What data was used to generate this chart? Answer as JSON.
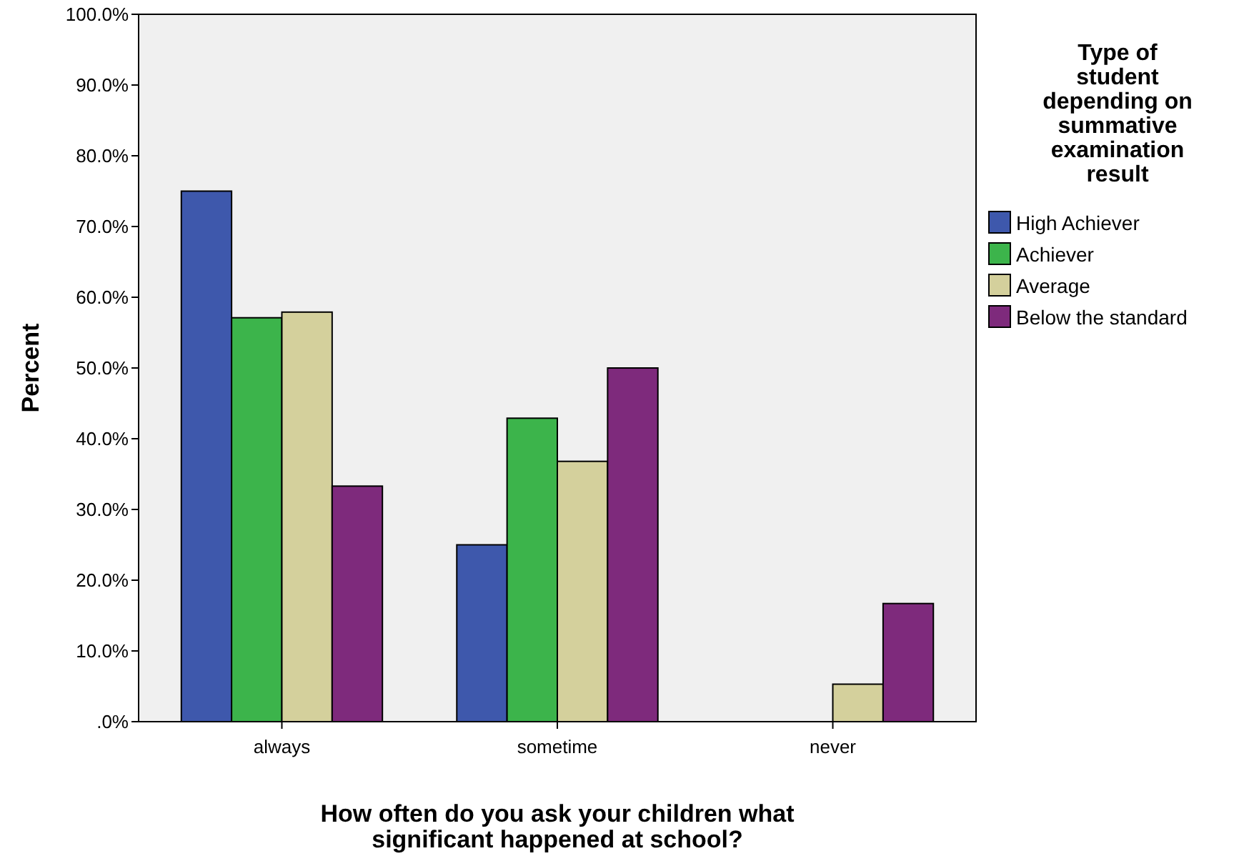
{
  "chart_data": {
    "type": "bar",
    "xlabel": "How often do you ask your children what significant happened at school?",
    "ylabel": "Percent",
    "legend_title": "Type of student depending on summative examination result",
    "categories": [
      "always",
      "sometime",
      "never"
    ],
    "series": [
      {
        "name": "High Achiever",
        "color": "#3e58ac",
        "values": [
          75.0,
          25.0,
          0
        ]
      },
      {
        "name": "Achiever",
        "color": "#3cb44b",
        "values": [
          57.1,
          42.9,
          0
        ]
      },
      {
        "name": "Average",
        "color": "#d4d09c",
        "values": [
          57.9,
          36.8,
          5.3
        ]
      },
      {
        "name": "Below the standard",
        "color": "#7e2a7c",
        "values": [
          33.3,
          50.0,
          16.7
        ]
      }
    ],
    "ylim": [
      0,
      100
    ],
    "yticks": [
      {
        "value": 0,
        "label": ".0%"
      },
      {
        "value": 10,
        "label": "10.0%"
      },
      {
        "value": 20,
        "label": "20.0%"
      },
      {
        "value": 30,
        "label": "30.0%"
      },
      {
        "value": 40,
        "label": "40.0%"
      },
      {
        "value": 50,
        "label": "50.0%"
      },
      {
        "value": 60,
        "label": "60.0%"
      },
      {
        "value": 70,
        "label": "70.0%"
      },
      {
        "value": 80,
        "label": "80.0%"
      },
      {
        "value": 90,
        "label": "90.0%"
      },
      {
        "value": 100,
        "label": "100.0%"
      }
    ],
    "grid": false,
    "legend": "right"
  }
}
